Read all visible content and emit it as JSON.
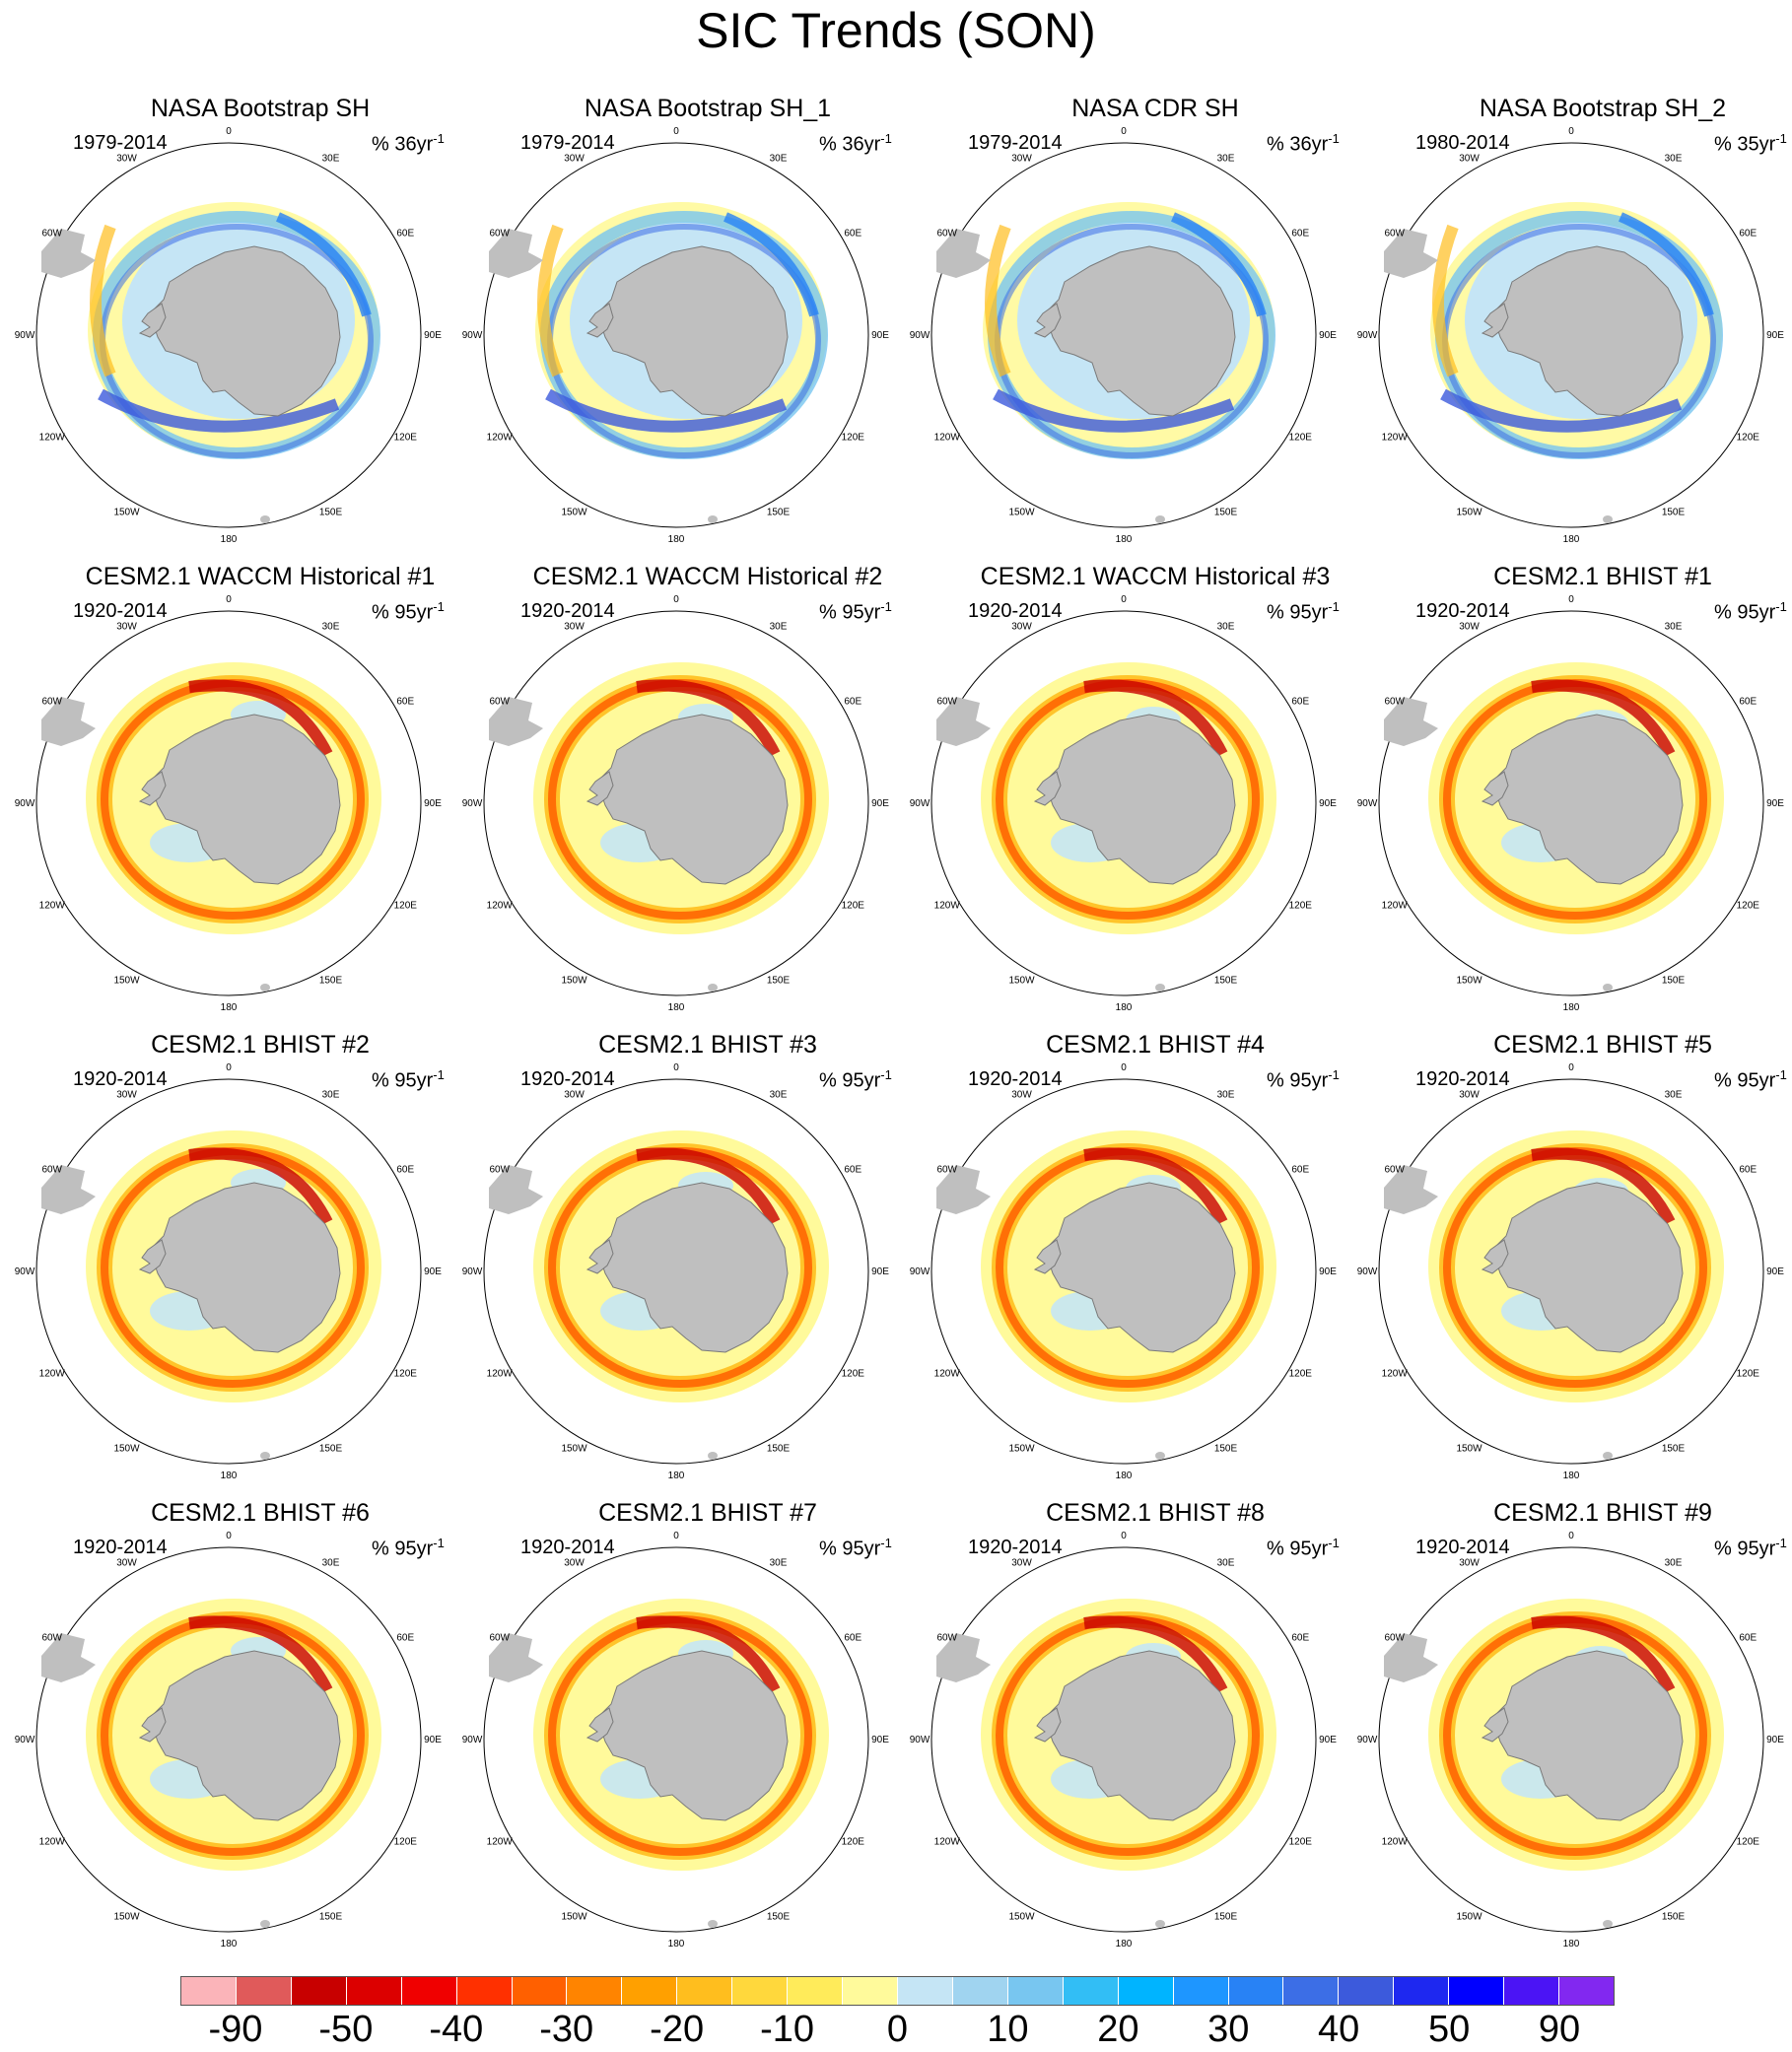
{
  "title": "SIC Trends (SON)",
  "panels": [
    {
      "title": "NASA Bootstrap SH",
      "years": "1979-2014",
      "pct": "% 36yr",
      "kind": "obs"
    },
    {
      "title": "NASA Bootstrap SH_1",
      "years": "1979-2014",
      "pct": "% 36yr",
      "kind": "obs"
    },
    {
      "title": "NASA CDR SH",
      "years": "1979-2014",
      "pct": "% 36yr",
      "kind": "obs"
    },
    {
      "title": "NASA Bootstrap SH_2",
      "years": "1980-2014",
      "pct": "% 35yr",
      "kind": "obs"
    },
    {
      "title": "CESM2.1 WACCM Historical #1",
      "years": "1920-2014",
      "pct": "% 95yr",
      "kind": "model"
    },
    {
      "title": "CESM2.1 WACCM Historical #2",
      "years": "1920-2014",
      "pct": "% 95yr",
      "kind": "model"
    },
    {
      "title": "CESM2.1 WACCM Historical #3",
      "years": "1920-2014",
      "pct": "% 95yr",
      "kind": "model"
    },
    {
      "title": "CESM2.1 BHIST #1",
      "years": "1920-2014",
      "pct": "% 95yr",
      "kind": "model"
    },
    {
      "title": "CESM2.1 BHIST #2",
      "years": "1920-2014",
      "pct": "% 95yr",
      "kind": "model"
    },
    {
      "title": "CESM2.1 BHIST #3",
      "years": "1920-2014",
      "pct": "% 95yr",
      "kind": "model"
    },
    {
      "title": "CESM2.1 BHIST #4",
      "years": "1920-2014",
      "pct": "% 95yr",
      "kind": "model"
    },
    {
      "title": "CESM2.1 BHIST #5",
      "years": "1920-2014",
      "pct": "% 95yr",
      "kind": "model"
    },
    {
      "title": "CESM2.1 BHIST #6",
      "years": "1920-2014",
      "pct": "% 95yr",
      "kind": "model"
    },
    {
      "title": "CESM2.1 BHIST #7",
      "years": "1920-2014",
      "pct": "% 95yr",
      "kind": "model"
    },
    {
      "title": "CESM2.1 BHIST #8",
      "years": "1920-2014",
      "pct": "% 95yr",
      "kind": "model"
    },
    {
      "title": "CESM2.1 BHIST #9",
      "years": "1920-2014",
      "pct": "% 95yr",
      "kind": "model"
    }
  ],
  "pct_exponent": "-1",
  "longitude_labels": [
    "0",
    "30E",
    "60E",
    "90E",
    "120E",
    "150E",
    "180",
    "150W",
    "120W",
    "90W",
    "60W",
    "30W"
  ],
  "colorbar": {
    "colors": [
      "#fbb4b9",
      "#e05a5a",
      "#c80000",
      "#dc0000",
      "#f00000",
      "#ff3000",
      "#ff6000",
      "#ff8400",
      "#ffa000",
      "#ffbe1e",
      "#ffd83c",
      "#ffeb5a",
      "#fffa9b",
      "#c5e5f5",
      "#a0d4f0",
      "#78c6f0",
      "#32bef5",
      "#00b4ff",
      "#1e96ff",
      "#2882f5",
      "#3c6ee6",
      "#3c5adc",
      "#1e28f0",
      "#0000ff",
      "#4b14f5",
      "#8228f0"
    ],
    "tick_labels": [
      "-90",
      "-50",
      "-40",
      "-30",
      "-20",
      "-10",
      "0",
      "10",
      "20",
      "30",
      "40",
      "50",
      "90"
    ]
  },
  "colors": {
    "land": "#bfbfbf",
    "land_stroke": "#7a7a7a",
    "frame": "#000000"
  }
}
